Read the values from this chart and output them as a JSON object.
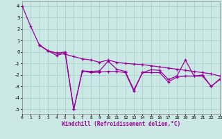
{
  "title": "",
  "xlabel": "Windchill (Refroidissement éolien,°C)",
  "ylabel": "",
  "background_color": "#cce8e4",
  "grid_color": "#aad4d0",
  "line_color": "#990099",
  "x_ticks": [
    0,
    1,
    2,
    3,
    4,
    5,
    6,
    7,
    8,
    9,
    10,
    11,
    12,
    13,
    14,
    15,
    16,
    17,
    18,
    19,
    20,
    21,
    22,
    23
  ],
  "ylim": [
    -5.4,
    4.4
  ],
  "xlim": [
    0,
    23
  ],
  "yticks": [
    4,
    3,
    2,
    1,
    0,
    -1,
    -2,
    -3,
    -4,
    -5
  ],
  "line1_x": [
    0,
    1,
    2,
    3,
    4,
    5,
    6,
    7,
    8,
    9,
    10,
    11,
    12,
    13,
    14,
    15,
    16,
    17,
    18,
    19,
    20,
    21,
    22,
    23
  ],
  "line1_y": [
    4.0,
    2.2,
    0.6,
    0.1,
    -0.1,
    -0.2,
    -0.4,
    -0.6,
    -0.7,
    -0.9,
    -0.7,
    -0.9,
    -1.0,
    -1.05,
    -1.1,
    -1.2,
    -1.3,
    -1.4,
    -1.5,
    -1.6,
    -1.7,
    -1.8,
    -1.9,
    -2.1
  ],
  "line2_x": [
    2,
    3,
    4,
    5,
    6,
    7,
    8,
    9,
    10,
    11,
    12,
    13,
    14,
    15,
    16,
    17,
    18,
    19,
    20,
    21,
    22,
    23
  ],
  "line2_y": [
    0.6,
    0.1,
    -0.1,
    0.0,
    -5.0,
    -1.65,
    -1.7,
    -1.65,
    -0.8,
    -1.5,
    -1.7,
    -3.3,
    -1.8,
    -1.55,
    -1.6,
    -2.4,
    -2.1,
    -0.7,
    -2.1,
    -2.0,
    -3.0,
    -2.35
  ],
  "line3_x": [
    2,
    3,
    4,
    5,
    6,
    7,
    8,
    9,
    10,
    11,
    12,
    13,
    14,
    15,
    16,
    17,
    18,
    19,
    20,
    21,
    22,
    23
  ],
  "line3_y": [
    0.6,
    0.1,
    -0.3,
    -0.1,
    -5.0,
    -1.65,
    -1.8,
    -1.75,
    -1.7,
    -1.7,
    -1.8,
    -3.4,
    -1.8,
    -1.8,
    -1.8,
    -2.6,
    -2.2,
    -2.1,
    -2.1,
    -2.1,
    -3.0,
    -2.4
  ]
}
